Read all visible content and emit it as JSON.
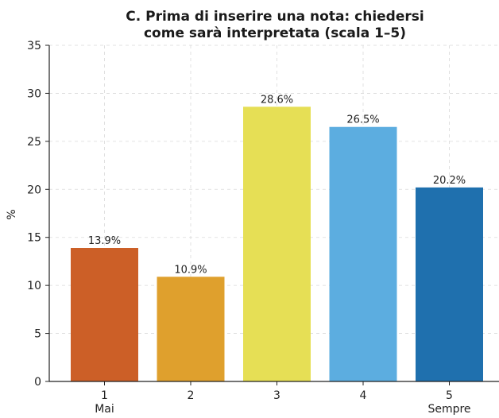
{
  "chart_data": {
    "type": "bar",
    "title_lines": [
      "C. Prima di inserire una nota: chiedersi",
      "come sarà interpretata (scala 1–5)"
    ],
    "xlabel": "",
    "ylabel": "%",
    "categories": [
      "1",
      "2",
      "3",
      "4",
      "5"
    ],
    "category_sublabels": [
      "Mai",
      "",
      "",
      "",
      "Sempre"
    ],
    "values": [
      13.9,
      10.9,
      28.6,
      26.5,
      20.2
    ],
    "value_labels": [
      "13.9%",
      "10.9%",
      "28.6%",
      "26.5%",
      "20.2%"
    ],
    "bar_colors": [
      "#cc5f27",
      "#dfa02d",
      "#e6df55",
      "#5cade0",
      "#1f70ae"
    ],
    "ylim": [
      0,
      35
    ],
    "yticks": [
      0,
      5,
      10,
      15,
      20,
      25,
      30,
      35
    ],
    "ytick_labels": [
      "0",
      "5",
      "10",
      "15",
      "20",
      "25",
      "30",
      "35"
    ],
    "grid": true,
    "grid_style": "dashed",
    "legend": "none"
  }
}
